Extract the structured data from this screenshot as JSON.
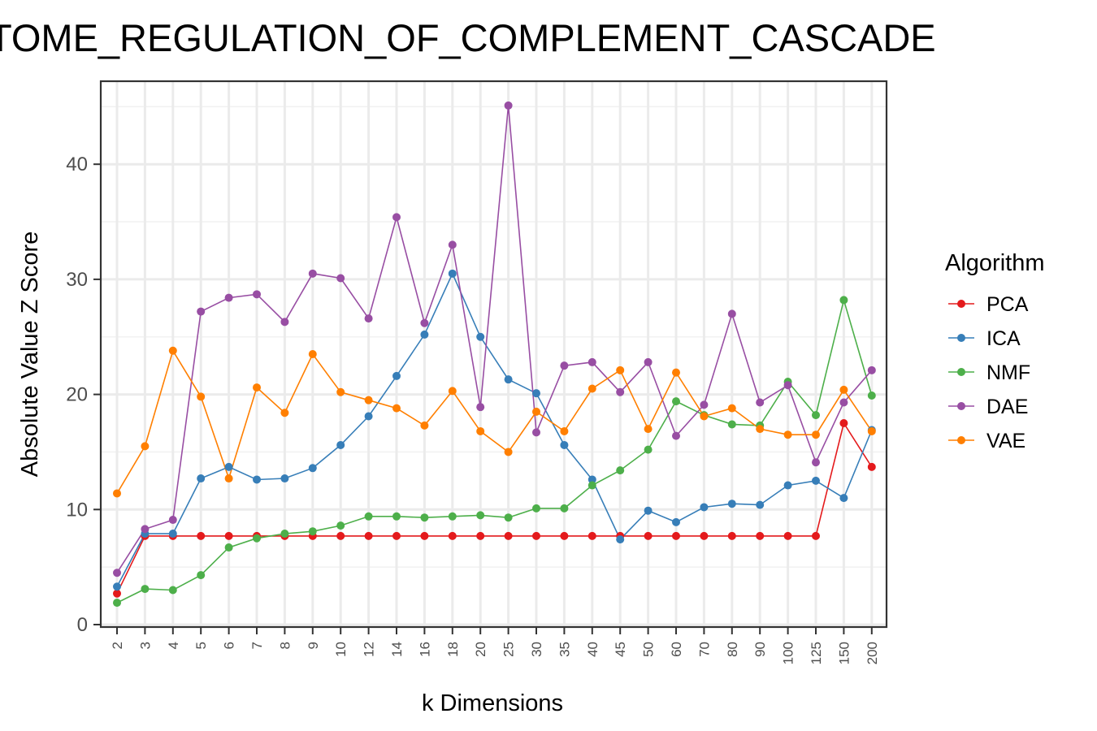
{
  "chart_data": {
    "type": "line",
    "title": "TOME_REGULATION_OF_COMPLEMENT_CASCADE",
    "xlabel": "k Dimensions",
    "ylabel": "Absolute Value Z Score",
    "ylim": [
      0,
      45
    ],
    "yticks": [
      0,
      10,
      20,
      30,
      40
    ],
    "grid": true,
    "legend_title": "Algorithm",
    "legend_position": "right",
    "categories": [
      "2",
      "3",
      "4",
      "5",
      "6",
      "7",
      "8",
      "9",
      "10",
      "12",
      "14",
      "16",
      "18",
      "20",
      "25",
      "30",
      "35",
      "40",
      "45",
      "50",
      "60",
      "70",
      "80",
      "90",
      "100",
      "125",
      "150",
      "200"
    ],
    "series": [
      {
        "name": "PCA",
        "color": "#e41a1c",
        "values": [
          2.7,
          7.7,
          7.7,
          7.7,
          7.7,
          7.7,
          7.7,
          7.7,
          7.7,
          7.7,
          7.7,
          7.7,
          7.7,
          7.7,
          7.7,
          7.7,
          7.7,
          7.7,
          7.7,
          7.7,
          7.7,
          7.7,
          7.7,
          7.7,
          7.7,
          7.7,
          17.5,
          13.7
        ]
      },
      {
        "name": "ICA",
        "color": "#377eb8",
        "values": [
          3.3,
          7.9,
          7.9,
          12.7,
          13.7,
          12.6,
          12.7,
          13.6,
          15.6,
          18.1,
          21.6,
          25.2,
          30.5,
          25.0,
          21.3,
          20.1,
          15.6,
          12.6,
          7.4,
          9.9,
          8.9,
          10.2,
          10.5,
          10.4,
          12.1,
          12.5,
          11.0,
          16.9
        ]
      },
      {
        "name": "NMF",
        "color": "#4daf4a",
        "values": [
          1.9,
          3.1,
          3.0,
          4.3,
          6.7,
          7.5,
          7.9,
          8.1,
          8.6,
          9.4,
          9.4,
          9.3,
          9.4,
          9.5,
          9.3,
          10.1,
          10.1,
          12.1,
          13.4,
          15.2,
          19.4,
          18.2,
          17.4,
          17.3,
          21.1,
          18.2,
          28.2,
          19.9
        ]
      },
      {
        "name": "DAE",
        "color": "#984ea3",
        "values": [
          4.5,
          8.3,
          9.1,
          27.2,
          28.4,
          28.7,
          26.3,
          30.5,
          30.1,
          26.6,
          35.4,
          26.2,
          33.0,
          18.9,
          45.1,
          16.7,
          22.5,
          22.8,
          20.2,
          22.8,
          16.4,
          19.1,
          27.0,
          19.3,
          20.8,
          14.1,
          19.3,
          22.1
        ]
      },
      {
        "name": "VAE",
        "color": "#ff7f00",
        "values": [
          11.4,
          15.5,
          23.8,
          19.8,
          12.7,
          20.6,
          18.4,
          23.5,
          20.2,
          19.5,
          18.8,
          17.3,
          20.3,
          16.8,
          15.0,
          18.5,
          16.8,
          20.5,
          22.1,
          17.0,
          21.9,
          18.1,
          18.8,
          17.0,
          16.5,
          16.5,
          20.4,
          16.8
        ]
      }
    ]
  }
}
